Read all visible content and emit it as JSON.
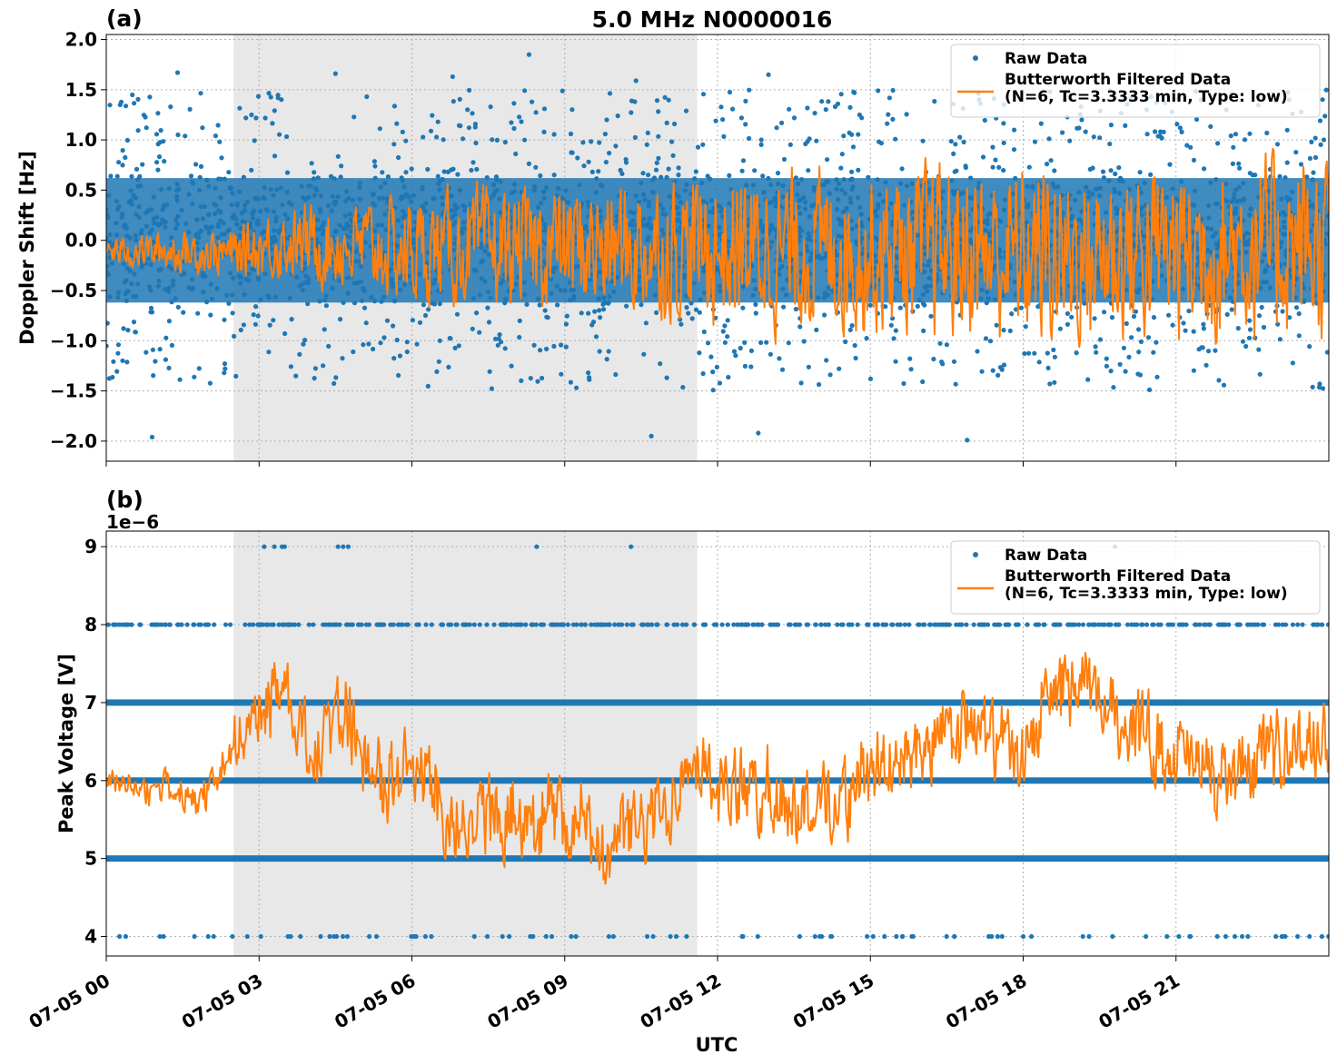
{
  "title": "5.0 MHz N0000016",
  "xlabel": "UTC",
  "colors": {
    "raw": "#1f77b4",
    "filtered": "#ff7f0e",
    "shade": "#e8e8e8",
    "grid": "#b0b0b0"
  },
  "x_ticks": [
    "07-05 00",
    "07-05 03",
    "07-05 06",
    "07-05 09",
    "07-05 12",
    "07-05 15",
    "07-05 18",
    "07-05 21"
  ],
  "legend": {
    "raw": "Raw Data",
    "filtered_line1": "Butterworth Filtered Data",
    "filtered_line2": "(N=6, Tc=3.3333 min, Type: low)"
  },
  "chart_data": [
    {
      "type": "scatter",
      "panel_label": "(a)",
      "ylabel": "Doppler Shift [Hz]",
      "xlim_hours": [
        0,
        24
      ],
      "x_tick_hours": [
        0,
        3,
        6,
        9,
        12,
        15,
        18,
        21
      ],
      "ylim": [
        -2.2,
        2.05
      ],
      "y_ticks": [
        2.0,
        1.5,
        1.0,
        0.5,
        0.0,
        -0.5,
        -1.0,
        -1.5,
        -2.0
      ],
      "y_tick_labels": [
        "2.0",
        "1.5",
        "1.0",
        "0.5",
        "0.0",
        "−0.5",
        "−1.0",
        "−1.5",
        "−2.0"
      ],
      "shaded_span_hours": [
        2.5,
        11.6
      ],
      "grid": true,
      "legend_position": "top-right",
      "raw_outliers_hz": [
        [
          1.4,
          1.67
        ],
        [
          4.5,
          1.66
        ],
        [
          8.3,
          1.85
        ],
        [
          13.0,
          1.65
        ],
        [
          16.9,
          -1.99
        ],
        [
          0.9,
          -1.96
        ],
        [
          10.7,
          -1.95
        ],
        [
          12.8,
          -1.92
        ],
        [
          6.8,
          1.63
        ],
        [
          10.4,
          1.59
        ]
      ],
      "series": [
        {
          "name": "Raw Data",
          "kind": "points",
          "description_bands_hz": [
            [
              -0.7,
              0.7
            ]
          ]
        },
        {
          "name": "Butterworth Filtered Data",
          "kind": "line",
          "envelope": [
            [
              0,
              -0.3,
              0.1
            ],
            [
              2.5,
              -0.45,
              0.2
            ],
            [
              3.5,
              -0.5,
              0.45
            ],
            [
              6,
              -0.8,
              0.6
            ],
            [
              9,
              -0.9,
              0.75
            ],
            [
              12,
              -1.1,
              0.9
            ],
            [
              15,
              -1.2,
              1.0
            ],
            [
              18,
              -1.35,
              1.05
            ],
            [
              21,
              -1.3,
              1.1
            ],
            [
              24,
              -1.25,
              1.15
            ]
          ]
        }
      ]
    },
    {
      "type": "scatter",
      "panel_label": "(b)",
      "offset_text": "1e−6",
      "ylabel": "Peak Voltage [V]",
      "xlim_hours": [
        0,
        24
      ],
      "x_tick_hours": [
        0,
        3,
        6,
        9,
        12,
        15,
        18,
        21
      ],
      "ylim": [
        3.75,
        9.2
      ],
      "y_ticks": [
        9,
        8,
        7,
        6,
        5,
        4
      ],
      "y_tick_labels": [
        "9",
        "8",
        "7",
        "6",
        "5",
        "4"
      ],
      "shaded_span_hours": [
        2.5,
        11.6
      ],
      "grid": true,
      "legend_position": "top-right",
      "raw_levels": [
        4,
        5,
        6,
        7,
        8,
        9
      ],
      "series": [
        {
          "name": "Raw Data",
          "kind": "points",
          "dense_levels": [
            5,
            6,
            7
          ],
          "sparse_levels": [
            4,
            8,
            9
          ]
        },
        {
          "name": "Butterworth Filtered Data",
          "kind": "line",
          "mean_profile": [
            [
              0,
              6.0
            ],
            [
              1,
              5.9
            ],
            [
              2,
              5.8
            ],
            [
              2.5,
              6.4
            ],
            [
              3,
              7.0
            ],
            [
              3.5,
              7.3
            ],
            [
              4,
              6.2
            ],
            [
              4.5,
              6.9
            ],
            [
              5,
              6.5
            ],
            [
              5.5,
              5.8
            ],
            [
              6,
              6.3
            ],
            [
              6.5,
              5.8
            ],
            [
              7,
              5.3
            ],
            [
              8,
              5.6
            ],
            [
              9,
              5.5
            ],
            [
              10,
              5.2
            ],
            [
              11,
              5.6
            ],
            [
              11.5,
              6.5
            ],
            [
              12,
              5.9
            ],
            [
              13,
              5.8
            ],
            [
              14,
              5.7
            ],
            [
              15,
              6.0
            ],
            [
              16,
              6.4
            ],
            [
              17,
              6.7
            ],
            [
              18,
              6.3
            ],
            [
              18.5,
              7.1
            ],
            [
              19,
              7.2
            ],
            [
              20,
              6.8
            ],
            [
              21,
              6.3
            ],
            [
              22,
              6.0
            ],
            [
              23,
              6.4
            ],
            [
              24,
              6.5
            ]
          ]
        }
      ]
    }
  ]
}
